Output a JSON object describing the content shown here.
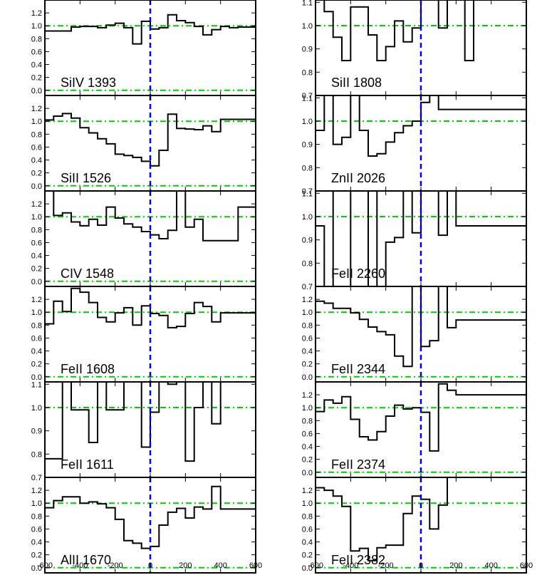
{
  "chart_data": {
    "type": "line",
    "style": "step",
    "xlim": [
      -600,
      600
    ],
    "x_ticks": [
      "-600",
      "-400",
      "-200",
      "0",
      "200",
      "400",
      "600"
    ],
    "x_values": [
      -575,
      -525,
      -475,
      -425,
      -375,
      -325,
      -275,
      -225,
      -175,
      -125,
      -75,
      -25,
      25,
      75,
      125,
      175,
      225,
      275,
      325,
      375,
      425,
      475,
      525,
      575
    ],
    "colors": {
      "spectrum": "#000000",
      "reference_line": "#00cc00",
      "zero_velocity": "#0000cc"
    },
    "reference_levels": [
      0,
      1
    ],
    "zero_velocity": 0,
    "columns": [
      [
        {
          "label": "SiIV 1393",
          "ylim": [
            -0.08,
            1.4
          ],
          "yticks": [
            0,
            0.2,
            0.4,
            0.6,
            0.8,
            1.0,
            1.2
          ],
          "ytick_labels": [
            "0.0",
            "0.2",
            "0.4",
            "0.6",
            "0.8",
            "1.0",
            "1.2"
          ],
          "values": [
            0.92,
            0.92,
            0.92,
            0.98,
            0.99,
            0.99,
            0.97,
            1.01,
            1.04,
            0.97,
            0.72,
            1.07,
            0.95,
            0.97,
            1.17,
            1.08,
            1.05,
            0.99,
            0.86,
            0.94,
            0.99,
            0.97,
            0.98,
            0.98
          ]
        },
        {
          "label": "SiII 1526",
          "ylim": [
            -0.08,
            1.4
          ],
          "yticks": [
            0,
            0.2,
            0.4,
            0.6,
            0.8,
            1.0,
            1.2
          ],
          "ytick_labels": [
            "0.0",
            "0.2",
            "0.4",
            "0.6",
            "0.8",
            "1.0",
            "1.2"
          ],
          "values": [
            1.02,
            1.08,
            1.12,
            1.05,
            0.9,
            0.82,
            0.73,
            0.65,
            0.49,
            0.47,
            0.44,
            0.38,
            0.31,
            0.55,
            1.11,
            0.89,
            0.88,
            0.87,
            0.93,
            0.84,
            1.03,
            1.03,
            1.03,
            1.03
          ]
        },
        {
          "label": "CIV 1548",
          "ylim": [
            -0.08,
            1.4
          ],
          "yticks": [
            0,
            0.2,
            0.4,
            0.6,
            0.8,
            1.0,
            1.2
          ],
          "ytick_labels": [
            "0.0",
            "0.2",
            "0.4",
            "0.6",
            "0.8",
            "1.0",
            "1.2"
          ],
          "values": [
            1.4,
            1.02,
            1.06,
            0.92,
            0.86,
            0.96,
            0.87,
            1.15,
            0.98,
            0.89,
            0.84,
            0.77,
            0.72,
            0.66,
            0.79,
            1.4,
            0.84,
            0.96,
            0.63,
            0.63,
            0.63,
            0.63,
            1.15,
            1.15
          ]
        },
        {
          "label": "FeII 1608",
          "ylim": [
            -0.08,
            1.4
          ],
          "yticks": [
            0,
            0.2,
            0.4,
            0.6,
            0.8,
            1.0,
            1.2
          ],
          "ytick_labels": [
            "0.0",
            "0.2",
            "0.4",
            "0.6",
            "0.8",
            "1.0",
            "1.2"
          ],
          "values": [
            0.82,
            1.17,
            1.01,
            1.37,
            1.31,
            1.15,
            0.92,
            0.85,
            0.99,
            1.07,
            0.8,
            1.1,
            0.98,
            0.95,
            0.76,
            0.78,
            0.98,
            1.15,
            1.09,
            0.85,
            0.99,
            0.99,
            0.99,
            0.99
          ]
        },
        {
          "label": "FeII 1611",
          "ylim": [
            0.7,
            1.11
          ],
          "yticks": [
            0.7,
            0.8,
            0.9,
            1.0,
            1.1
          ],
          "ytick_labels": [
            "0.7",
            "0.8",
            "0.9",
            "1.0",
            "1.1"
          ],
          "values": [
            0.78,
            0.78,
            1.11,
            0.99,
            0.99,
            0.85,
            1.11,
            0.99,
            0.99,
            1.11,
            1.11,
            0.83,
            0.98,
            1.11,
            1.1,
            1.11,
            0.77,
            1.0,
            1.11,
            0.93,
            1.11,
            1.11,
            1.11,
            1.11
          ]
        },
        {
          "label": "AlII 1670",
          "ylim": [
            -0.08,
            1.4
          ],
          "yticks": [
            0,
            0.2,
            0.4,
            0.6,
            0.8,
            1.0,
            1.2
          ],
          "ytick_labels": [
            "0.0",
            "0.2",
            "0.4",
            "0.6",
            "0.8",
            "1.0",
            "1.2"
          ],
          "values": [
            0.93,
            1.04,
            1.1,
            1.1,
            1.0,
            1.02,
            0.99,
            0.93,
            0.75,
            0.42,
            0.38,
            0.3,
            0.33,
            0.66,
            0.86,
            0.92,
            0.77,
            0.94,
            0.91,
            1.26,
            0.91,
            0.91,
            0.91,
            0.91
          ]
        }
      ],
      [
        {
          "label": "SiII 1808",
          "ylim": [
            0.7,
            1.11
          ],
          "yticks": [
            0.7,
            0.8,
            0.9,
            1.0,
            1.1
          ],
          "ytick_labels": [
            "0.7",
            "0.8",
            "0.9",
            "1.0",
            "1.1"
          ],
          "values": [
            1.11,
            1.06,
            0.95,
            0.85,
            1.08,
            1.08,
            0.96,
            0.85,
            0.91,
            1.02,
            0.93,
            0.99,
            1.11,
            1.11,
            0.99,
            1.11,
            1.11,
            0.85,
            1.11,
            1.11,
            1.11,
            1.11,
            1.11,
            1.11
          ]
        },
        {
          "label": "ZnII 2026",
          "ylim": [
            0.7,
            1.11
          ],
          "yticks": [
            0.7,
            0.8,
            0.9,
            1.0,
            1.1
          ],
          "ytick_labels": [
            "0.7",
            "0.8",
            "0.9",
            "1.0",
            "1.1"
          ],
          "values": [
            0.96,
            1.11,
            0.9,
            0.93,
            1.11,
            0.96,
            0.85,
            0.86,
            0.91,
            0.95,
            0.98,
            1.0,
            1.08,
            1.11,
            1.05,
            1.05,
            1.05,
            1.05,
            1.05,
            1.05,
            1.05,
            1.05,
            1.05,
            1.05
          ]
        },
        {
          "label": "FeII 2260",
          "ylim": [
            0.7,
            1.11
          ],
          "yticks": [
            0.7,
            0.8,
            0.9,
            1.0,
            1.1
          ],
          "ytick_labels": [
            "0.7",
            "0.8",
            "0.9",
            "1.0",
            "1.1"
          ],
          "values": [
            0.96,
            0.7,
            1.11,
            1.11,
            0.7,
            0.7,
            1.11,
            0.7,
            0.89,
            0.91,
            1.11,
            0.93,
            1.11,
            1.11,
            0.92,
            1.11,
            0.96,
            0.96,
            0.96,
            0.96,
            0.96,
            0.96,
            0.96,
            0.96
          ]
        },
        {
          "label": "FeII 2344",
          "ylim": [
            -0.08,
            1.4
          ],
          "yticks": [
            0,
            0.2,
            0.4,
            0.6,
            0.8,
            1.0,
            1.2
          ],
          "ytick_labels": [
            "0.0",
            "0.2",
            "0.4",
            "0.6",
            "0.8",
            "1.0",
            "1.2"
          ],
          "values": [
            1.17,
            1.14,
            1.06,
            1.06,
            0.99,
            0.89,
            0.77,
            0.7,
            0.65,
            0.32,
            0.16,
            1.4,
            0.47,
            0.56,
            1.4,
            0.76,
            0.88,
            0.88,
            0.88,
            0.88,
            0.88,
            0.88,
            0.88,
            0.88
          ]
        },
        {
          "label": "FeII 2374",
          "ylim": [
            -0.08,
            1.4
          ],
          "yticks": [
            0,
            0.2,
            0.4,
            0.6,
            0.8,
            1.0,
            1.2
          ],
          "ytick_labels": [
            "0.0",
            "0.2",
            "0.4",
            "0.6",
            "0.8",
            "1.0",
            "1.2"
          ],
          "values": [
            0.94,
            1.12,
            1.07,
            1.17,
            0.82,
            0.55,
            0.5,
            0.63,
            0.87,
            1.04,
            0.98,
            1.0,
            0.93,
            0.33,
            1.37,
            1.27,
            1.2,
            1.2,
            1.2,
            1.2,
            1.2,
            1.2,
            1.2,
            1.2
          ]
        },
        {
          "label": "FeII 2382",
          "ylim": [
            -0.08,
            1.4
          ],
          "yticks": [
            0,
            0.2,
            0.4,
            0.6,
            0.8,
            1.0,
            1.2
          ],
          "ytick_labels": [
            "0.0",
            "0.2",
            "0.4",
            "0.6",
            "0.8",
            "1.0",
            "1.2"
          ],
          "values": [
            1.24,
            1.2,
            1.11,
            0.95,
            0.26,
            0.3,
            0.11,
            0.31,
            0.35,
            0.35,
            0.84,
            1.11,
            1.06,
            0.6,
            0.97,
            1.4,
            1.4,
            1.4,
            1.4,
            1.4,
            1.4,
            1.4,
            1.4,
            1.4
          ]
        }
      ]
    ]
  }
}
